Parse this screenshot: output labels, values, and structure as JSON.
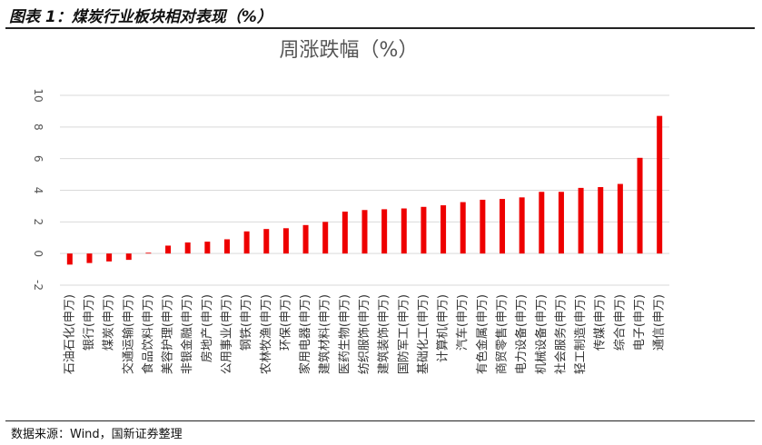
{
  "figure": {
    "title": "图表 1：煤炭行业板块相对表现（%）",
    "source": "数据来源：Wind，国新证券整理"
  },
  "chart_data": {
    "type": "bar",
    "title": "周涨跌幅（%）",
    "xlabel": "",
    "ylabel": "",
    "ylim": [
      -2,
      10
    ],
    "yticks": [
      -2,
      0,
      2,
      4,
      6,
      8,
      10
    ],
    "grid": true,
    "legend": "none",
    "bar_color": "#ee0000",
    "categories": [
      "石油石化(申万)",
      "银行(申万)",
      "煤炭(申万)",
      "交通运输(申万)",
      "食品饮料(申万)",
      "美容护理(申万)",
      "非银金融(申万)",
      "房地产(申万)",
      "公用事业(申万)",
      "钢铁(申万)",
      "农林牧渔(申万)",
      "环保(申万)",
      "家用电器(申万)",
      "建筑材料(申万)",
      "医药生物(申万)",
      "纺织服饰(申万)",
      "建筑装饰(申万)",
      "国防军工(申万)",
      "基础化工(申万)",
      "计算机(申万)",
      "汽车(申万)",
      "有色金属(申万)",
      "商贸零售(申万)",
      "电力设备(申万)",
      "机械设备(申万)",
      "社会服务(申万)",
      "轻工制造(申万)",
      "传媒(申万)",
      "综合(申万)",
      "电子(申万)",
      "通信(申万)"
    ],
    "values": [
      -0.7,
      -0.6,
      -0.5,
      -0.4,
      0.05,
      0.5,
      0.7,
      0.75,
      0.9,
      1.4,
      1.55,
      1.6,
      1.8,
      2.0,
      2.65,
      2.75,
      2.8,
      2.85,
      2.95,
      3.05,
      3.25,
      3.4,
      3.45,
      3.55,
      3.9,
      3.9,
      4.15,
      4.2,
      4.4,
      6.05,
      8.7
    ]
  }
}
